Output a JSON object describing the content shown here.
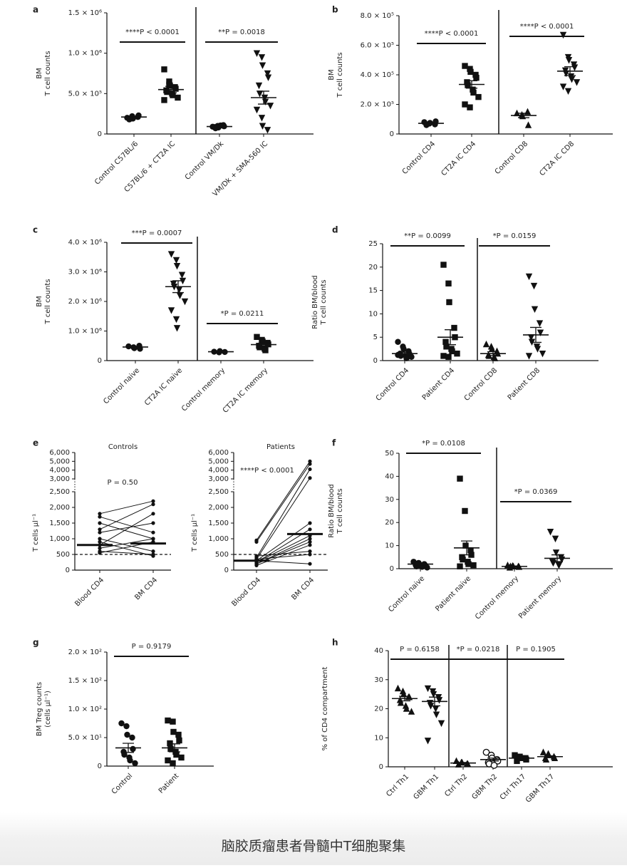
{
  "chart_data": [
    {
      "type": "dot",
      "label": "a",
      "ylabel": [
        "BM",
        "T cell counts"
      ],
      "ylim": [
        0,
        1500000
      ],
      "yticks": [
        0,
        {
          "value": 500000,
          "label": "5.0 × 10⁵"
        },
        {
          "value": 1000000,
          "label": "1.0 × 10⁶"
        },
        {
          "value": 1500000,
          "label": "1.5 × 10⁶"
        }
      ],
      "categories": [
        "Control C57BL/6",
        "C57BL/6 + CT2A IC",
        "Control VM/Dk",
        "VM/Dk + SMA-560 IC"
      ],
      "markers": [
        "circle",
        "square",
        "circle",
        "triangle-down"
      ],
      "series": [
        [
          200000,
          220000,
          190000,
          210000,
          230000,
          180000
        ],
        [
          800000,
          650000,
          600000,
          580000,
          560000,
          540000,
          520000,
          500000,
          480000,
          450000,
          420000,
          610000
        ],
        [
          90000,
          100000,
          80000,
          110000,
          95000,
          85000,
          70000,
          105000
        ],
        [
          1000000,
          950000,
          850000,
          750000,
          700000,
          600000,
          500000,
          450000,
          400000,
          350000,
          300000,
          200000,
          100000,
          50000
        ]
      ],
      "means": [
        210000,
        550000,
        92000,
        450000
      ],
      "errors": [
        10000,
        40000,
        5000,
        80000
      ],
      "annotations": [
        "****P < 0.0001",
        "**P = 0.0018"
      ]
    },
    {
      "type": "dot",
      "label": "b",
      "ylabel": [
        "BM",
        "T cell counts"
      ],
      "ylim": [
        0,
        800000
      ],
      "yticks": [
        0,
        {
          "value": 200000,
          "label": "2.0 × 10⁵"
        },
        {
          "value": 400000,
          "label": "4.0 × 10⁵"
        },
        {
          "value": 600000,
          "label": "6.0 × 10⁵"
        },
        {
          "value": 800000,
          "label": "8.0 × 10⁵"
        }
      ],
      "categories": [
        "Control CD4",
        "CT2A IC CD4",
        "Control CD8",
        "CT2A IC CD8"
      ],
      "markers": [
        "circle",
        "square",
        "triangle",
        "triangle-down"
      ],
      "series": [
        [
          80000,
          70000,
          75000,
          65000,
          85000,
          60000
        ],
        [
          460000,
          440000,
          420000,
          400000,
          380000,
          350000,
          330000,
          300000,
          280000,
          250000,
          200000,
          180000
        ],
        [
          140000,
          130000,
          120000,
          150000,
          60000
        ],
        [
          670000,
          520000,
          500000,
          470000,
          450000,
          430000,
          410000,
          390000,
          370000,
          350000,
          320000,
          290000
        ]
      ],
      "means": [
        72000,
        335000,
        125000,
        425000
      ],
      "errors": [
        4000,
        25000,
        15000,
        30000
      ],
      "annotations": [
        "****P < 0.0001",
        "****P < 0.0001"
      ]
    },
    {
      "type": "dot",
      "label": "c",
      "ylabel": [
        "BM",
        "T cell counts"
      ],
      "ylim": [
        0,
        4000000
      ],
      "yticks": [
        0,
        {
          "value": 1000000,
          "label": "1.0 × 10⁶"
        },
        {
          "value": 2000000,
          "label": "2.0 × 10⁶"
        },
        {
          "value": 3000000,
          "label": "3.0 × 10⁶"
        },
        {
          "value": 4000000,
          "label": "4.0 × 10⁶"
        }
      ],
      "categories": [
        "Control naive",
        "CT2A IC naive",
        "Control memory",
        "CT2A IC memory"
      ],
      "markers": [
        "circle",
        "triangle-down",
        "circle",
        "square"
      ],
      "series": [
        [
          480000,
          450000,
          420000,
          500000,
          400000
        ],
        [
          3600000,
          3400000,
          3200000,
          2900000,
          2700000,
          2600000,
          2500000,
          2400000,
          2200000,
          2000000,
          1700000,
          1400000,
          1100000
        ],
        [
          300000,
          280000,
          320000,
          290000
        ],
        [
          800000,
          700000,
          650000,
          600000,
          550000,
          500000,
          450000,
          400000,
          350000
        ]
      ],
      "means": [
        460000,
        2500000,
        300000,
        540000
      ],
      "errors": [
        20000,
        200000,
        10000,
        50000
      ],
      "annotations": [
        "***P = 0.0007",
        "*P = 0.0211"
      ]
    },
    {
      "type": "dot",
      "label": "d",
      "ylabel": [
        "Ratio BM/blood",
        "T cell counts"
      ],
      "ylim": [
        0,
        25
      ],
      "yticks": [
        0,
        5,
        10,
        15,
        20,
        25
      ],
      "categories": [
        "Control CD4",
        "Patient CD4",
        "Control CD8",
        "Patient CD8"
      ],
      "markers": [
        "circle",
        "square",
        "triangle",
        "triangle-down"
      ],
      "series": [
        [
          4,
          3,
          2.5,
          2,
          1.5,
          1.5,
          1,
          1,
          0.5,
          0.8,
          1.2
        ],
        [
          20.5,
          16.5,
          12.5,
          7,
          5,
          4,
          3,
          2.5,
          2,
          1.5,
          1,
          0.8
        ],
        [
          3.5,
          3,
          2.5,
          2,
          1.5,
          1.2,
          1,
          0.8,
          0.5
        ],
        [
          18,
          16,
          11,
          8,
          6,
          5,
          4,
          3,
          2.5,
          1.5,
          1
        ]
      ],
      "means": [
        1.5,
        5,
        1.5,
        5.5
      ],
      "errors": [
        0.3,
        1.6,
        0.4,
        1.6
      ],
      "annotations": [
        "**P = 0.0099",
        "*P = 0.0159"
      ]
    },
    {
      "type": "paired",
      "label": "e",
      "ylabel": "T cells µl⁻¹",
      "ylim": [
        0,
        6000
      ],
      "ybreak": [
        2500,
        3000
      ],
      "yticks": [
        0,
        500,
        {
          "value": 1000,
          "label": "1,000"
        },
        {
          "value": 1500,
          "label": "1,500"
        },
        {
          "value": 2000,
          "label": "2,000"
        },
        {
          "value": 2500,
          "label": "2,500"
        },
        {
          "value": 3000,
          "label": "3,000"
        },
        {
          "value": 4000,
          "label": "4,000"
        },
        {
          "value": 5000,
          "label": "5,000"
        },
        {
          "value": 6000,
          "label": "6,000"
        }
      ],
      "hline": 500,
      "categories": [
        "Blood CD4",
        "BM CD4"
      ],
      "panels": [
        {
          "title": "Controls",
          "annotation": "P = 0.50",
          "means": [
            800,
            850
          ],
          "series": [
            [
              1800,
              2200
            ],
            [
              1700,
              1200
            ],
            [
              1500,
              1000
            ],
            [
              1300,
              2100
            ],
            [
              1200,
              1500
            ],
            [
              1000,
              600
            ],
            [
              900,
              450
            ],
            [
              800,
              1800
            ],
            [
              700,
              1000
            ],
            [
              600,
              500
            ],
            [
              550,
              900
            ]
          ]
        },
        {
          "title": "Patients",
          "annotation": "****P < 0.0001",
          "means": [
            300,
            1150
          ],
          "series": [
            [
              950,
              5000
            ],
            [
              900,
              4700
            ],
            [
              400,
              4100
            ],
            [
              350,
              3100
            ],
            [
              300,
              1500
            ],
            [
              250,
              1300
            ],
            [
              250,
              1100
            ],
            [
              200,
              1000
            ],
            [
              200,
              900
            ],
            [
              150,
              800
            ],
            [
              450,
              600
            ],
            [
              300,
              200
            ],
            [
              350,
              500
            ]
          ]
        }
      ]
    },
    {
      "type": "dot",
      "label": "f",
      "ylabel": [
        "Ratio BM/blood",
        "T cell counts"
      ],
      "ylim": [
        0,
        50
      ],
      "yticks": [
        0,
        10,
        20,
        30,
        40,
        50
      ],
      "categories": [
        "Control naive",
        "Patient naive",
        "Control memory",
        "Patient memory"
      ],
      "markers": [
        "circle",
        "square",
        "triangle",
        "triangle-down"
      ],
      "series": [
        [
          3,
          2.5,
          2,
          2,
          1.5,
          1.5,
          1,
          1,
          0.8,
          0.5
        ],
        [
          39,
          25,
          10,
          8,
          6,
          5,
          4,
          3,
          2,
          1.5,
          1
        ],
        [
          1.5,
          1.2,
          1,
          1,
          0.8,
          0.5,
          1
        ],
        [
          16,
          13,
          7,
          5,
          4,
          3,
          2.5,
          2,
          1.5
        ]
      ],
      "means": [
        2,
        9,
        1,
        4.5
      ],
      "errors": [
        0.3,
        3,
        0.2,
        1.5
      ],
      "annotations": [
        "*P = 0.0108",
        "*P = 0.0369"
      ]
    },
    {
      "type": "dot",
      "label": "g",
      "ylabel": [
        "BM Treg counts",
        "(cells µl⁻¹)"
      ],
      "ylim": [
        0,
        200
      ],
      "yticks": [
        0,
        {
          "value": 50,
          "label": "5.0 × 10¹"
        },
        {
          "value": 100,
          "label": "1.0 × 10²"
        },
        {
          "value": 150,
          "label": "1.5 × 10²"
        },
        {
          "value": 200,
          "label": "2.0 × 10²"
        }
      ],
      "categories": [
        "Control",
        "Patient"
      ],
      "markers": [
        "circle",
        "square"
      ],
      "series": [
        [
          75,
          70,
          55,
          50,
          30,
          25,
          20,
          15,
          10,
          5
        ],
        [
          80,
          78,
          60,
          55,
          45,
          40,
          30,
          25,
          20,
          15,
          10,
          5
        ]
      ],
      "means": [
        32,
        32
      ],
      "errors": [
        8,
        7
      ],
      "annotations": [
        "P = 0.9179"
      ]
    },
    {
      "type": "dot",
      "label": "h",
      "ylabel": [
        "% of CD4 compartment"
      ],
      "ylim": [
        0,
        40
      ],
      "yticks": [
        0,
        10,
        20,
        30,
        40
      ],
      "categories": [
        "Ctrl Th1",
        "GBM Th1",
        "Ctrl Th2",
        "GBM Th2",
        "Ctrl Th17",
        "GBM Th17"
      ],
      "markers": [
        "triangle",
        "triangle-down",
        "triangle",
        "circle-open",
        "square",
        "triangle"
      ],
      "series": [
        [
          27,
          26,
          25,
          24,
          24,
          23,
          22,
          21,
          20,
          19
        ],
        [
          27,
          26,
          25,
          24,
          23,
          22,
          21,
          20,
          18,
          15,
          9
        ],
        [
          2,
          1.5,
          1.5,
          1,
          1,
          0.8
        ],
        [
          5,
          4,
          3,
          2.5,
          2,
          1.5,
          1,
          0.5
        ],
        [
          4,
          3.5,
          3,
          3,
          2.5,
          2
        ],
        [
          5,
          4.5,
          4,
          3.5,
          3,
          3,
          2.5
        ]
      ],
      "means": [
        23.5,
        22.5,
        1.3,
        2.5,
        3,
        3.5
      ],
      "errors": [
        0.8,
        1.5,
        0.2,
        0.5,
        0.3,
        0.3
      ],
      "annotations": [
        "P = 0.6158",
        "*P = 0.0218",
        "P = 0.1905"
      ]
    }
  ],
  "caption": "脑胶质瘤患者骨髓中T细胞聚集"
}
